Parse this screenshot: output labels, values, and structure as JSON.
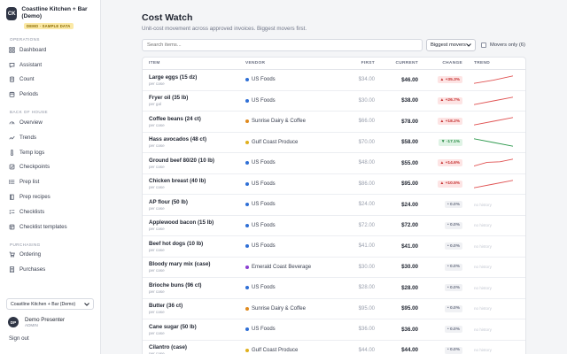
{
  "app": {
    "logo_initials": "CK",
    "name": "Coastline Kitchen + Bar (Demo)",
    "badge": "DEMO · SAMPLE DATA"
  },
  "sidebar": {
    "sections": [
      {
        "label": "OPERATIONS",
        "items": [
          {
            "label": "Dashboard",
            "icon": "dashboard-icon"
          },
          {
            "label": "Assistant",
            "icon": "chat-icon"
          },
          {
            "label": "Count",
            "icon": "clipboard-icon"
          },
          {
            "label": "Periods",
            "icon": "calendar-icon"
          }
        ]
      },
      {
        "label": "BACK OF HOUSE",
        "items": [
          {
            "label": "Overview",
            "icon": "gauge-icon"
          },
          {
            "label": "Trends",
            "icon": "trend-icon"
          },
          {
            "label": "Temp logs",
            "icon": "thermometer-icon"
          },
          {
            "label": "Checkpoints",
            "icon": "checkpoint-icon"
          },
          {
            "label": "Prep list",
            "icon": "list-icon"
          },
          {
            "label": "Prep recipes",
            "icon": "book-icon"
          },
          {
            "label": "Checklists",
            "icon": "checklist-icon"
          },
          {
            "label": "Checklist templates",
            "icon": "template-icon"
          }
        ]
      },
      {
        "label": "PURCHASING",
        "items": [
          {
            "label": "Ordering",
            "icon": "cart-icon"
          },
          {
            "label": "Purchases",
            "icon": "receipt-icon"
          }
        ]
      }
    ],
    "location_select": "Coastline Kitchen + Bar (Demo)",
    "user": {
      "initials": "DP",
      "name": "Demo Presenter",
      "role": "ADMIN"
    },
    "signout": "Sign out"
  },
  "page": {
    "title": "Cost Watch",
    "subtitle": "Unit-cost movement across approved invoices. Biggest movers first.",
    "search_placeholder": "Search items...",
    "sort_value": "Biggest movers",
    "movers_only_label": "Movers only (6)"
  },
  "table": {
    "headers": {
      "item": "ITEM",
      "vendor": "VENDOR",
      "first": "FIRST",
      "current": "CURRENT",
      "change": "CHANGE",
      "trend": "TREND"
    },
    "no_history_label": "no history",
    "rows": [
      {
        "name": "Large eggs (15 dz)",
        "unit": "per case",
        "vendor": "US Foods",
        "vendor_color": "#2f6fd6",
        "first": "$34.00",
        "current": "$46.00",
        "change": "▲ +35.3%",
        "dir": "up",
        "trend": [
          0.15,
          0.45,
          0.85
        ]
      },
      {
        "name": "Fryer oil (35 lb)",
        "unit": "per gal",
        "vendor": "US Foods",
        "vendor_color": "#2f6fd6",
        "first": "$30.00",
        "current": "$38.00",
        "change": "▲ +26.7%",
        "dir": "up",
        "trend": [
          0.15,
          0.5,
          0.85
        ]
      },
      {
        "name": "Coffee beans (24 ct)",
        "unit": "per case",
        "vendor": "Sunrise Dairy & Coffee",
        "vendor_color": "#e08a1e",
        "first": "$66.00",
        "current": "$78.00",
        "change": "▲ +18.2%",
        "dir": "up",
        "trend": [
          0.15,
          0.5,
          0.85
        ]
      },
      {
        "name": "Hass avocados (48 ct)",
        "unit": "per case",
        "vendor": "Gulf Coast Produce",
        "vendor_color": "#e0b01e",
        "first": "$70.00",
        "current": "$58.00",
        "change": "▼ -17.1%",
        "dir": "down",
        "trend": [
          0.85,
          0.5,
          0.15
        ]
      },
      {
        "name": "Ground beef 80/20 (10 lb)",
        "unit": "per case",
        "vendor": "US Foods",
        "vendor_color": "#2f6fd6",
        "first": "$48.00",
        "current": "$55.00",
        "change": "▲ +14.6%",
        "dir": "up",
        "trend": [
          0.2,
          0.55,
          0.6,
          0.85
        ]
      },
      {
        "name": "Chicken breast (40 lb)",
        "unit": "per case",
        "vendor": "US Foods",
        "vendor_color": "#2f6fd6",
        "first": "$86.00",
        "current": "$95.00",
        "change": "▲ +10.5%",
        "dir": "up",
        "trend": [
          0.15,
          0.5,
          0.85
        ]
      },
      {
        "name": "AP flour (50 lb)",
        "unit": "per case",
        "vendor": "US Foods",
        "vendor_color": "#2f6fd6",
        "first": "$24.00",
        "current": "$24.00",
        "change": "• 0.0%",
        "dir": "flat",
        "trend": []
      },
      {
        "name": "Applewood bacon (15 lb)",
        "unit": "per case",
        "vendor": "US Foods",
        "vendor_color": "#2f6fd6",
        "first": "$72.00",
        "current": "$72.00",
        "change": "• 0.0%",
        "dir": "flat",
        "trend": []
      },
      {
        "name": "Beef hot dogs (10 lb)",
        "unit": "per case",
        "vendor": "US Foods",
        "vendor_color": "#2f6fd6",
        "first": "$41.00",
        "current": "$41.00",
        "change": "• 0.0%",
        "dir": "flat",
        "trend": []
      },
      {
        "name": "Bloody mary mix (case)",
        "unit": "per case",
        "vendor": "Emerald Coast Beverage",
        "vendor_color": "#8a3fd1",
        "first": "$30.00",
        "current": "$30.00",
        "change": "• 0.0%",
        "dir": "flat",
        "trend": []
      },
      {
        "name": "Brioche buns (96 ct)",
        "unit": "per case",
        "vendor": "US Foods",
        "vendor_color": "#2f6fd6",
        "first": "$28.00",
        "current": "$28.00",
        "change": "• 0.0%",
        "dir": "flat",
        "trend": []
      },
      {
        "name": "Butter (36 ct)",
        "unit": "per case",
        "vendor": "Sunrise Dairy & Coffee",
        "vendor_color": "#e08a1e",
        "first": "$95.00",
        "current": "$95.00",
        "change": "• 0.0%",
        "dir": "flat",
        "trend": []
      },
      {
        "name": "Cane sugar (50 lb)",
        "unit": "per case",
        "vendor": "US Foods",
        "vendor_color": "#2f6fd6",
        "first": "$36.00",
        "current": "$36.00",
        "change": "• 0.0%",
        "dir": "flat",
        "trend": []
      },
      {
        "name": "Cilantro (case)",
        "unit": "per case",
        "vendor": "Gulf Coast Produce",
        "vendor_color": "#e0b01e",
        "first": "$44.00",
        "current": "$44.00",
        "change": "• 0.0%",
        "dir": "flat",
        "trend": []
      }
    ]
  }
}
